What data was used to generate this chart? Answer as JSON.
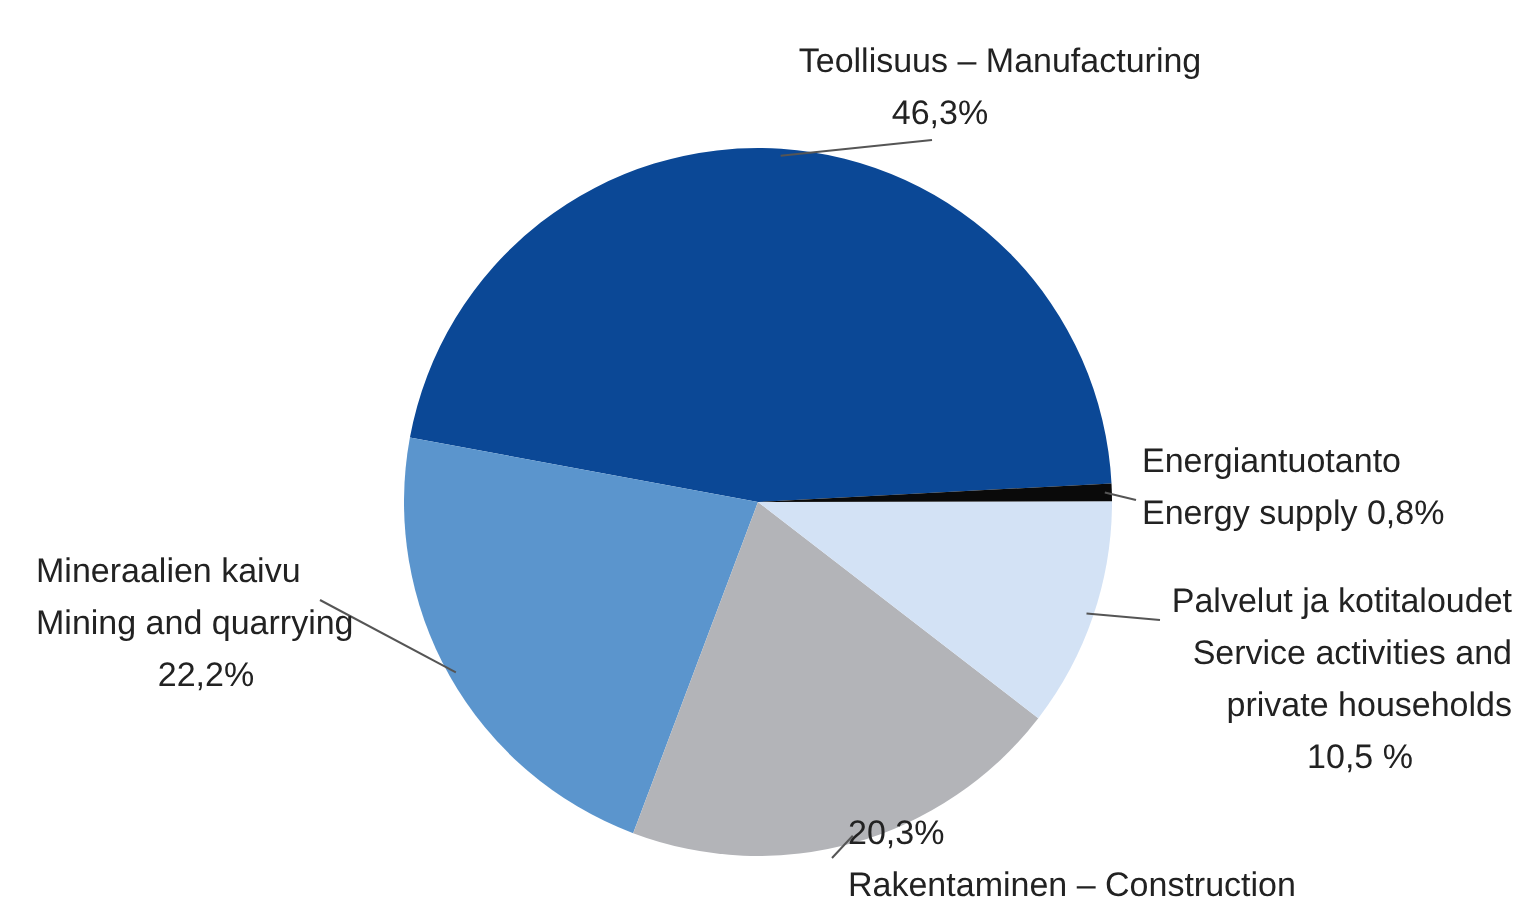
{
  "chart_data": {
    "type": "pie",
    "categories": [
      "Teollisuus – Manufacturing",
      "Mineraalien kaivu\nMining and quarrying",
      "Rakentaminen – Construction",
      "Palvelut ja kotitaloudet\nService activities and\nprivate households",
      "Energiantuotanto\nEnergy supply"
    ],
    "values": [
      46.3,
      22.2,
      20.3,
      10.5,
      0.8
    ],
    "value_labels": [
      "46,3%",
      "22,2%",
      "20,3%",
      "10,5 %",
      "0,8%"
    ],
    "colors": [
      "#0b4896",
      "#5b95cd",
      "#b3b4b8",
      "#d3e2f5",
      "#0a0a0a"
    ]
  }
}
